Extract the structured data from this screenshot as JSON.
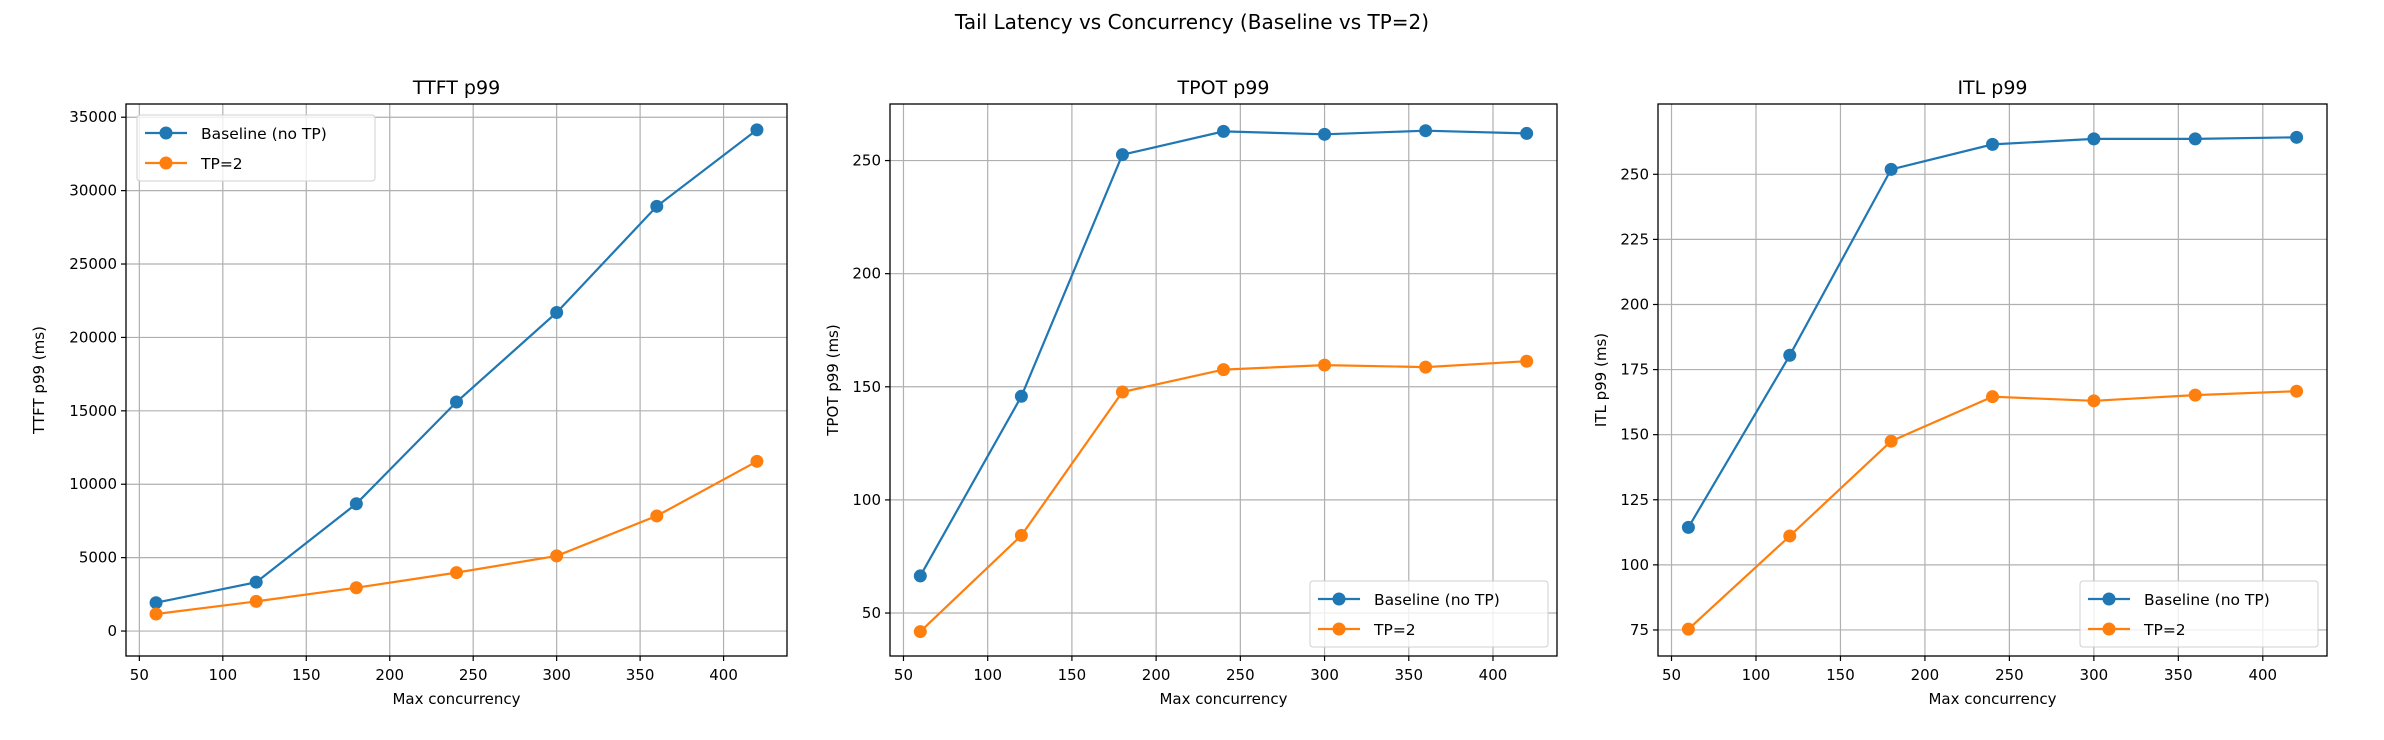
{
  "suptitle": "Tail Latency vs Concurrency (Baseline vs TP=2)",
  "colors": {
    "baseline": "#1f77b4",
    "tp2": "#ff7f0e",
    "grid": "#b0b0b0",
    "axis": "#000000"
  },
  "chart_data": [
    {
      "type": "line",
      "title": "TTFT p99",
      "xlabel": "Max concurrency",
      "ylabel": "TTFT p99 (ms)",
      "x": [
        60,
        120,
        180,
        240,
        300,
        360,
        420
      ],
      "xlim": [
        42,
        438
      ],
      "ylim": [
        -1700,
        35900
      ],
      "xticks": [
        50,
        100,
        150,
        200,
        250,
        300,
        350,
        400
      ],
      "yticks": [
        0,
        5000,
        10000,
        15000,
        20000,
        25000,
        30000,
        35000
      ],
      "grid": true,
      "legend": "upper-left",
      "series": [
        {
          "name": "Baseline (no TP)",
          "color": "#1f77b4",
          "values": [
            1930,
            3330,
            8670,
            15600,
            21700,
            28930,
            34140
          ]
        },
        {
          "name": "TP=2",
          "color": "#ff7f0e",
          "values": [
            1160,
            2020,
            2950,
            3980,
            5120,
            7840,
            11560
          ]
        }
      ]
    },
    {
      "type": "line",
      "title": "TPOT p99",
      "xlabel": "Max concurrency",
      "ylabel": "TPOT p99 (ms)",
      "x": [
        60,
        120,
        180,
        240,
        300,
        360,
        420
      ],
      "xlim": [
        42,
        438
      ],
      "ylim": [
        31,
        275
      ],
      "xticks": [
        50,
        100,
        150,
        200,
        250,
        300,
        350,
        400
      ],
      "yticks": [
        50,
        100,
        150,
        200,
        250
      ],
      "grid": true,
      "legend": "lower-right",
      "series": [
        {
          "name": "Baseline (no TP)",
          "color": "#1f77b4",
          "values": [
            66.4,
            145.8,
            252.6,
            262.9,
            261.6,
            263.2,
            262.0
          ]
        },
        {
          "name": "TP=2",
          "color": "#ff7f0e",
          "values": [
            41.8,
            84.3,
            147.7,
            157.6,
            159.6,
            158.7,
            161.3
          ]
        }
      ]
    },
    {
      "type": "line",
      "title": "ITL p99",
      "xlabel": "Max concurrency",
      "ylabel": "ITL p99 (ms)",
      "x": [
        60,
        120,
        180,
        240,
        300,
        360,
        420
      ],
      "xlim": [
        42,
        438
      ],
      "ylim": [
        65,
        277
      ],
      "xticks": [
        50,
        100,
        150,
        200,
        250,
        300,
        350,
        400
      ],
      "yticks": [
        75,
        100,
        125,
        150,
        175,
        200,
        225,
        250
      ],
      "grid": true,
      "legend": "lower-right",
      "series": [
        {
          "name": "Baseline (no TP)",
          "color": "#1f77b4",
          "values": [
            114.4,
            180.5,
            251.9,
            261.5,
            263.6,
            263.6,
            264.2
          ]
        },
        {
          "name": "TP=2",
          "color": "#ff7f0e",
          "values": [
            75.3,
            111.1,
            147.5,
            164.6,
            163.0,
            165.2,
            166.7
          ]
        }
      ]
    }
  ]
}
